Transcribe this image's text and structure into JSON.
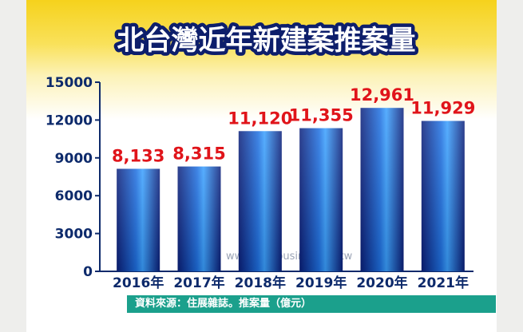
{
  "chart_data": {
    "type": "bar",
    "title": "北台灣近年新建案推案量",
    "categories": [
      "2016年",
      "2017年",
      "2018年",
      "2019年",
      "2020年",
      "2021年"
    ],
    "values": [
      8133,
      8315,
      11120,
      11355,
      12961,
      11929
    ],
    "data_labels": [
      "8,133",
      "8,315",
      "11,120",
      "11,355",
      "12,961",
      "11,929"
    ],
    "yticks": [
      "0",
      "3000",
      "6000",
      "9000",
      "12000",
      "15000"
    ],
    "ylim": [
      0,
      15000
    ],
    "grid": false,
    "legend": "none",
    "source": "資料來源：住展雜誌。推案量（億元）",
    "watermark": "www.myhousing.com.tw",
    "colors": {
      "bar_dark": "#0a1f7a",
      "bar_light": "#3aa0ff",
      "data_label": "#e0141a",
      "axis_text": "#0d2a6b",
      "title_fill": "#ffffff",
      "title_stroke": "#0d1e6b",
      "source_bg": "#1ba08c",
      "header_yellow": "#f6d21c"
    }
  }
}
